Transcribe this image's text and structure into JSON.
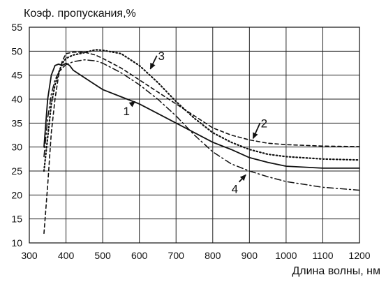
{
  "chart_data": {
    "type": "line",
    "title": "",
    "ylabel": "Коэф. пропускания,%",
    "xlabel": "Длина волны, нм",
    "xlim": [
      300,
      1200
    ],
    "ylim": [
      10,
      55
    ],
    "x_ticks": [
      "300",
      "400",
      "500",
      "600",
      "700",
      "800",
      "900",
      "1000",
      "1100",
      "1200"
    ],
    "y_ticks": [
      "10",
      "15",
      "20",
      "25",
      "30",
      "35",
      "40",
      "45",
      "50",
      "55"
    ],
    "grid": true,
    "series": [
      {
        "name": "1",
        "style": "solid",
        "x": [
          340,
          350,
          360,
          370,
          380,
          390,
          400,
          410,
          420,
          450,
          500,
          550,
          600,
          650,
          700,
          750,
          800,
          850,
          900,
          950,
          1000,
          1050,
          1100,
          1150,
          1200
        ],
        "y": [
          30,
          40,
          45,
          47,
          47.3,
          47,
          47.5,
          47,
          46,
          44.5,
          42,
          40.5,
          39,
          37,
          35,
          33,
          31,
          29.5,
          27.8,
          26.8,
          26,
          25.8,
          25.6,
          25.6,
          25.6
        ]
      },
      {
        "name": "2",
        "style": "dashed",
        "x": [
          340,
          350,
          360,
          370,
          380,
          390,
          400,
          420,
          450,
          480,
          500,
          550,
          600,
          650,
          700,
          750,
          800,
          850,
          900,
          950,
          1000,
          1100,
          1200
        ],
        "y": [
          12,
          22,
          33,
          40,
          45,
          48,
          49.5,
          49.8,
          49.8,
          49.2,
          48.5,
          46.5,
          44,
          41.5,
          39,
          36.5,
          34,
          32.5,
          31.5,
          30.8,
          30.5,
          30.2,
          30.1
        ]
      },
      {
        "name": "3",
        "style": "dotted",
        "x": [
          340,
          350,
          360,
          370,
          380,
          390,
          400,
          420,
          450,
          480,
          500,
          550,
          600,
          650,
          700,
          750,
          800,
          850,
          900,
          950,
          1000,
          1100,
          1200
        ],
        "y": [
          25,
          32,
          39,
          43,
          45.5,
          47.5,
          48.5,
          49.2,
          49.7,
          50.3,
          50.2,
          49.5,
          47,
          43.5,
          39.5,
          36,
          33,
          31,
          29.5,
          28.5,
          28,
          27.5,
          27.3
        ]
      },
      {
        "name": "4",
        "style": "dashdot",
        "x": [
          340,
          350,
          360,
          370,
          380,
          390,
          400,
          420,
          450,
          480,
          500,
          550,
          600,
          650,
          700,
          750,
          800,
          850,
          900,
          950,
          1000,
          1100,
          1200
        ],
        "y": [
          28,
          36,
          41,
          44,
          45.5,
          46.5,
          47.2,
          47.8,
          48.2,
          48,
          47.5,
          45.5,
          43,
          40,
          36.5,
          32.5,
          29,
          26.5,
          25,
          23.8,
          22.8,
          21.6,
          21
        ]
      }
    ],
    "annotations": [
      {
        "text": "1",
        "x": 565,
        "y": 37.5,
        "arrow_to": [
          588,
          39.5
        ]
      },
      {
        "text": "2",
        "x": 940,
        "y": 35,
        "arrow_to": [
          910,
          31.8
        ]
      },
      {
        "text": "3",
        "x": 660,
        "y": 49,
        "arrow_to": [
          630,
          46.3
        ]
      },
      {
        "text": "4",
        "x": 860,
        "y": 21.3,
        "arrow_to": [
          890,
          24.2
        ]
      }
    ]
  }
}
